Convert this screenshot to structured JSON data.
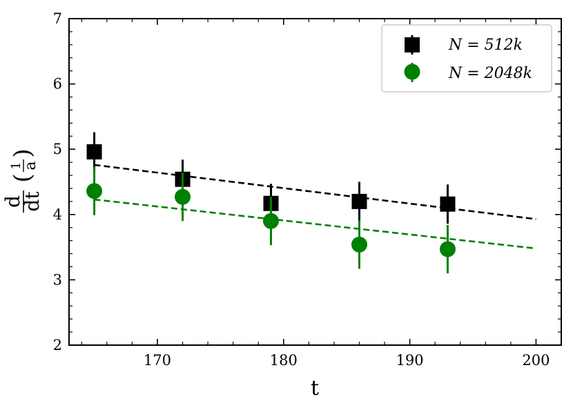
{
  "chart_data": {
    "type": "scatter",
    "xlabel": "t",
    "ylabel": {
      "numerator": "d",
      "denominator": "dt",
      "paren_open": "(",
      "paren_close": ")",
      "inner_numerator": "1",
      "inner_denominator": "a"
    },
    "xlim": [
      163,
      202
    ],
    "ylim": [
      2,
      7
    ],
    "xticks": [
      170,
      180,
      190,
      200
    ],
    "yticks": [
      2,
      3,
      4,
      5,
      6,
      7
    ],
    "legend_position": "top-right",
    "series": [
      {
        "name": "N = 512k",
        "marker": "square",
        "color": "#000000",
        "x": [
          165,
          172,
          179,
          186,
          193
        ],
        "y": [
          4.96,
          4.54,
          4.17,
          4.2,
          4.16
        ],
        "yerr": [
          0.3,
          0.3,
          0.3,
          0.3,
          0.3
        ],
        "fit": {
          "x": [
            165,
            200
          ],
          "y": [
            4.76,
            3.93
          ]
        }
      },
      {
        "name": "N = 2048k",
        "marker": "circle",
        "color": "#008000",
        "x": [
          165,
          172,
          179,
          186,
          193
        ],
        "y": [
          4.36,
          4.27,
          3.9,
          3.54,
          3.47
        ],
        "yerr": [
          0.37,
          0.37,
          0.37,
          0.37,
          0.37
        ],
        "fit": {
          "x": [
            165,
            200
          ],
          "y": [
            4.23,
            3.48
          ]
        }
      }
    ]
  }
}
